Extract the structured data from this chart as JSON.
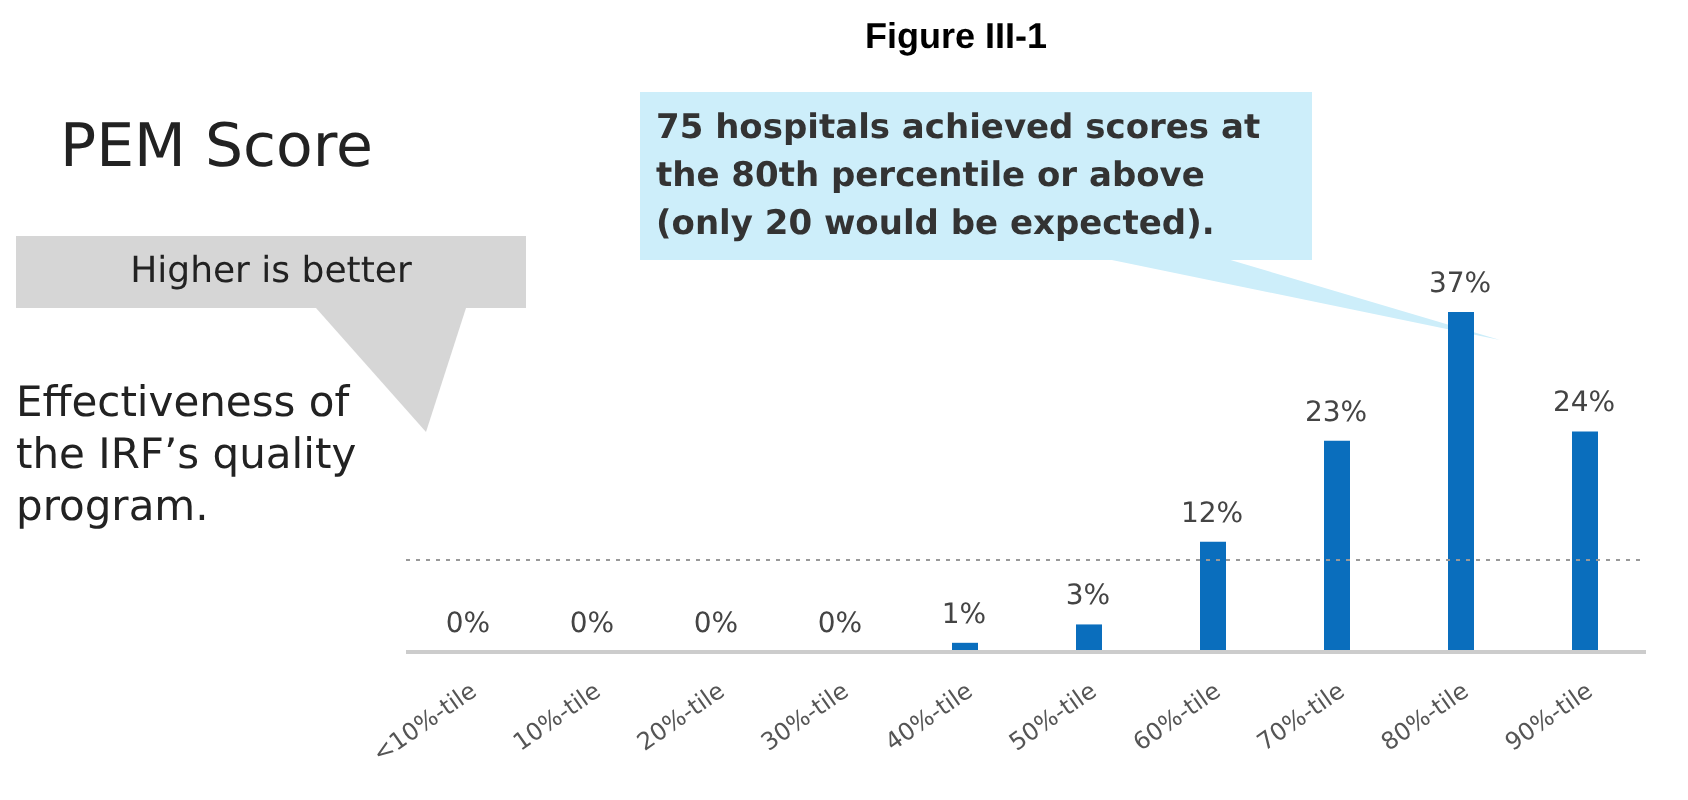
{
  "chart_data": {
    "type": "bar",
    "title": "Figure III-1",
    "subtitle": "PEM Score",
    "categories": [
      "<10%-tile",
      "10%-tile",
      "20%-tile",
      "30%-tile",
      "40%-tile",
      "50%-tile",
      "60%-tile",
      "70%-tile",
      "80%-tile",
      "90%-tile"
    ],
    "values": [
      0,
      0,
      0,
      0,
      1,
      3,
      12,
      23,
      37,
      24
    ],
    "value_labels": [
      "0%",
      "0%",
      "0%",
      "0%",
      "1%",
      "3%",
      "12%",
      "23%",
      "37%",
      "24%"
    ],
    "color": "#0a6ebd",
    "tick_labels": "x",
    "ref_lines": [
      {
        "axis": "y",
        "value": 10,
        "color": "#999999",
        "line_style": "dotted"
      }
    ],
    "annotations": [
      "Higher is better",
      "Effectiveness of the IRF’s quality program.",
      "75 hospitals achieved scores at the 80th percentile or above (only 20 would be expected)."
    ]
  }
}
